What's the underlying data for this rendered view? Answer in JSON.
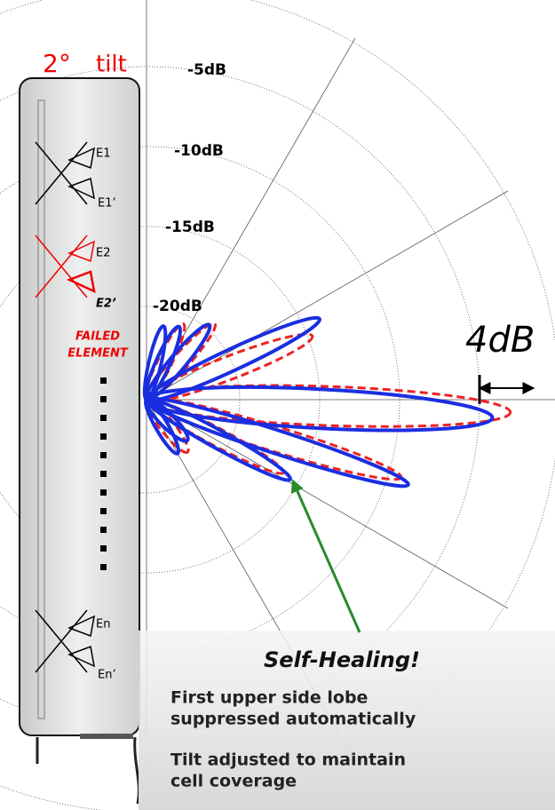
{
  "header": {
    "angle": "2°",
    "label": "tilt"
  },
  "antenna": {
    "elements": [
      "E1",
      "E1’",
      "E2",
      "E2’",
      "En",
      "En’"
    ],
    "failed_label": [
      "FAILED",
      "ELEMENT"
    ]
  },
  "polar": {
    "ring_labels": [
      "-5dB",
      "-10dB",
      "-15dB",
      "-20dB"
    ],
    "delta_label": "4dB"
  },
  "callout": {
    "title": "Self-Healing!",
    "points": [
      [
        "First upper side lobe",
        "suppressed automatically"
      ],
      [
        "Tilt adjusted to maintain",
        "cell coverage"
      ]
    ]
  }
}
